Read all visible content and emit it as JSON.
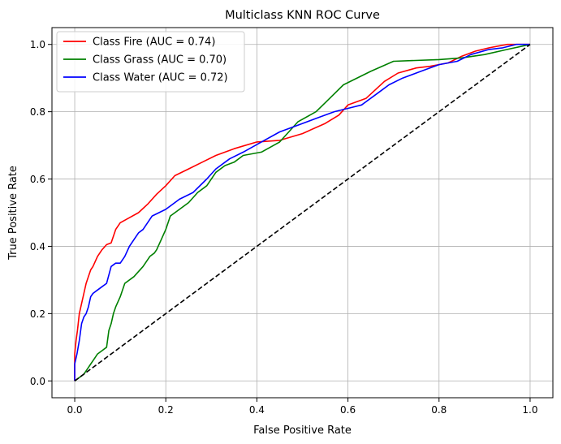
{
  "chart_data": {
    "type": "line",
    "title": "Multiclass KNN ROC Curve",
    "xlabel": "False Positive Rate",
    "ylabel": "True Positive Rate",
    "xlim": [
      -0.05,
      1.05
    ],
    "ylim": [
      -0.05,
      1.05
    ],
    "xticks": [
      "0.0",
      "0.2",
      "0.4",
      "0.6",
      "0.8",
      "1.0"
    ],
    "yticks": [
      "0.0",
      "0.2",
      "0.4",
      "0.6",
      "0.8",
      "1.0"
    ],
    "grid": true,
    "legend_position": "top-left",
    "series": [
      {
        "name": "Class Fire (AUC = 0.74)",
        "color": "#ff0000",
        "x": [
          0,
          0,
          0.003,
          0.006,
          0.01,
          0.015,
          0.02,
          0.025,
          0.03,
          0.035,
          0.04,
          0.05,
          0.06,
          0.07,
          0.08,
          0.09,
          0.1,
          0.12,
          0.14,
          0.16,
          0.18,
          0.2,
          0.22,
          0.25,
          0.28,
          0.31,
          0.35,
          0.4,
          0.45,
          0.5,
          0.55,
          0.58,
          0.6,
          0.64,
          0.68,
          0.71,
          0.75,
          0.78,
          0.82,
          0.85,
          0.88,
          0.91,
          0.95,
          1.0
        ],
        "y": [
          0,
          0.08,
          0.12,
          0.15,
          0.2,
          0.23,
          0.26,
          0.29,
          0.31,
          0.33,
          0.34,
          0.37,
          0.39,
          0.405,
          0.41,
          0.45,
          0.47,
          0.485,
          0.5,
          0.525,
          0.555,
          0.58,
          0.61,
          0.63,
          0.65,
          0.67,
          0.69,
          0.71,
          0.715,
          0.735,
          0.765,
          0.79,
          0.82,
          0.84,
          0.89,
          0.915,
          0.93,
          0.935,
          0.945,
          0.965,
          0.98,
          0.99,
          1.0,
          1.0
        ]
      },
      {
        "name": "Class Grass (AUC = 0.70)",
        "color": "#008000",
        "x": [
          0,
          0.02,
          0.025,
          0.03,
          0.035,
          0.04,
          0.045,
          0.05,
          0.06,
          0.07,
          0.075,
          0.08,
          0.085,
          0.09,
          0.1,
          0.11,
          0.13,
          0.15,
          0.165,
          0.175,
          0.18,
          0.19,
          0.2,
          0.21,
          0.23,
          0.25,
          0.27,
          0.29,
          0.31,
          0.33,
          0.35,
          0.37,
          0.41,
          0.45,
          0.49,
          0.53,
          0.56,
          0.59,
          0.65,
          0.7,
          0.8,
          0.85,
          0.9,
          0.95,
          1.0
        ],
        "y": [
          0,
          0.02,
          0.03,
          0.04,
          0.05,
          0.06,
          0.07,
          0.08,
          0.09,
          0.1,
          0.15,
          0.17,
          0.2,
          0.22,
          0.25,
          0.29,
          0.31,
          0.34,
          0.37,
          0.38,
          0.39,
          0.42,
          0.45,
          0.49,
          0.51,
          0.53,
          0.56,
          0.58,
          0.62,
          0.64,
          0.65,
          0.67,
          0.68,
          0.71,
          0.77,
          0.8,
          0.84,
          0.88,
          0.92,
          0.95,
          0.955,
          0.96,
          0.97,
          0.985,
          1.0
        ]
      },
      {
        "name": "Class Water (AUC = 0.72)",
        "color": "#0000ff",
        "x": [
          0,
          0,
          0.005,
          0.01,
          0.015,
          0.02,
          0.025,
          0.03,
          0.035,
          0.04,
          0.05,
          0.06,
          0.07,
          0.08,
          0.09,
          0.1,
          0.11,
          0.12,
          0.13,
          0.14,
          0.15,
          0.17,
          0.2,
          0.23,
          0.26,
          0.29,
          0.31,
          0.34,
          0.37,
          0.41,
          0.45,
          0.49,
          0.53,
          0.57,
          0.6,
          0.63,
          0.67,
          0.69,
          0.72,
          0.76,
          0.8,
          0.84,
          0.87,
          0.91,
          0.94,
          0.97,
          1.0
        ],
        "y": [
          0,
          0.05,
          0.08,
          0.12,
          0.17,
          0.19,
          0.2,
          0.22,
          0.25,
          0.26,
          0.27,
          0.28,
          0.29,
          0.34,
          0.35,
          0.35,
          0.37,
          0.4,
          0.42,
          0.44,
          0.45,
          0.49,
          0.51,
          0.54,
          0.56,
          0.6,
          0.63,
          0.66,
          0.68,
          0.71,
          0.74,
          0.76,
          0.78,
          0.8,
          0.81,
          0.82,
          0.86,
          0.88,
          0.9,
          0.92,
          0.94,
          0.95,
          0.97,
          0.985,
          0.99,
          1.0,
          1.0
        ]
      },
      {
        "name": "",
        "color": "#000000",
        "dashed": true,
        "x": [
          0,
          1
        ],
        "y": [
          0,
          1
        ]
      }
    ]
  }
}
